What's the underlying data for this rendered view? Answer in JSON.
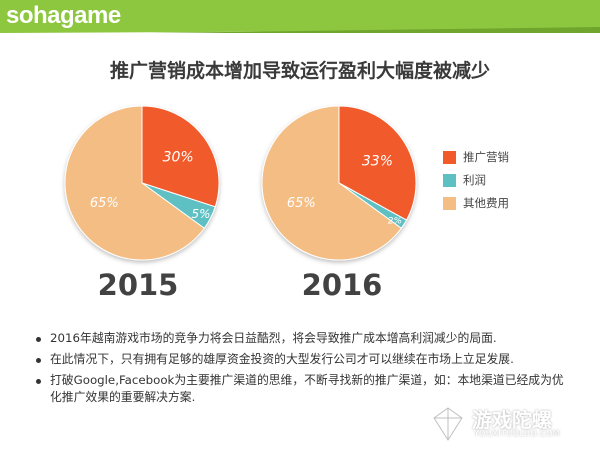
{
  "brand": {
    "logo_text": "sohagame"
  },
  "title": "推广营销成本增加导致运行盈利大幅度被减少",
  "colors": {
    "marketing": "#F15A29",
    "profit": "#5FC0C4",
    "other": "#F3BD83",
    "header_green": "#8DC63F"
  },
  "chart_data": [
    {
      "type": "pie",
      "title": "2015",
      "slices": [
        {
          "label": "推广营销",
          "value": 30,
          "display": "30%"
        },
        {
          "label": "利润",
          "value": 5,
          "display": "5%"
        },
        {
          "label": "其他费用",
          "value": 65,
          "display": "65%"
        }
      ]
    },
    {
      "type": "pie",
      "title": "2016",
      "slices": [
        {
          "label": "推广营销",
          "value": 33,
          "display": "33%"
        },
        {
          "label": "利润",
          "value": 2,
          "display": "2%"
        },
        {
          "label": "其他费用",
          "value": 65,
          "display": "65%"
        }
      ]
    }
  ],
  "legend": [
    "推广营销",
    "利润",
    "其他费用"
  ],
  "bullets": [
    "2016年越南游戏市场的竞争力将会日益酷烈，将会导致推广成本增高利润减少的局面.",
    "在此情况下，只有拥有足够的雄厚资金投资的大型发行公司才可以继续在市场上立足发展.",
    "打破Google,Facebook为主要推广渠道的思维，不断寻找新的推广渠道，如：本地渠道已经成为优化推广效果的重要解决方案."
  ],
  "watermark": {
    "name": "游戏陀螺",
    "url": "YOUXITUOLUO.COM"
  }
}
